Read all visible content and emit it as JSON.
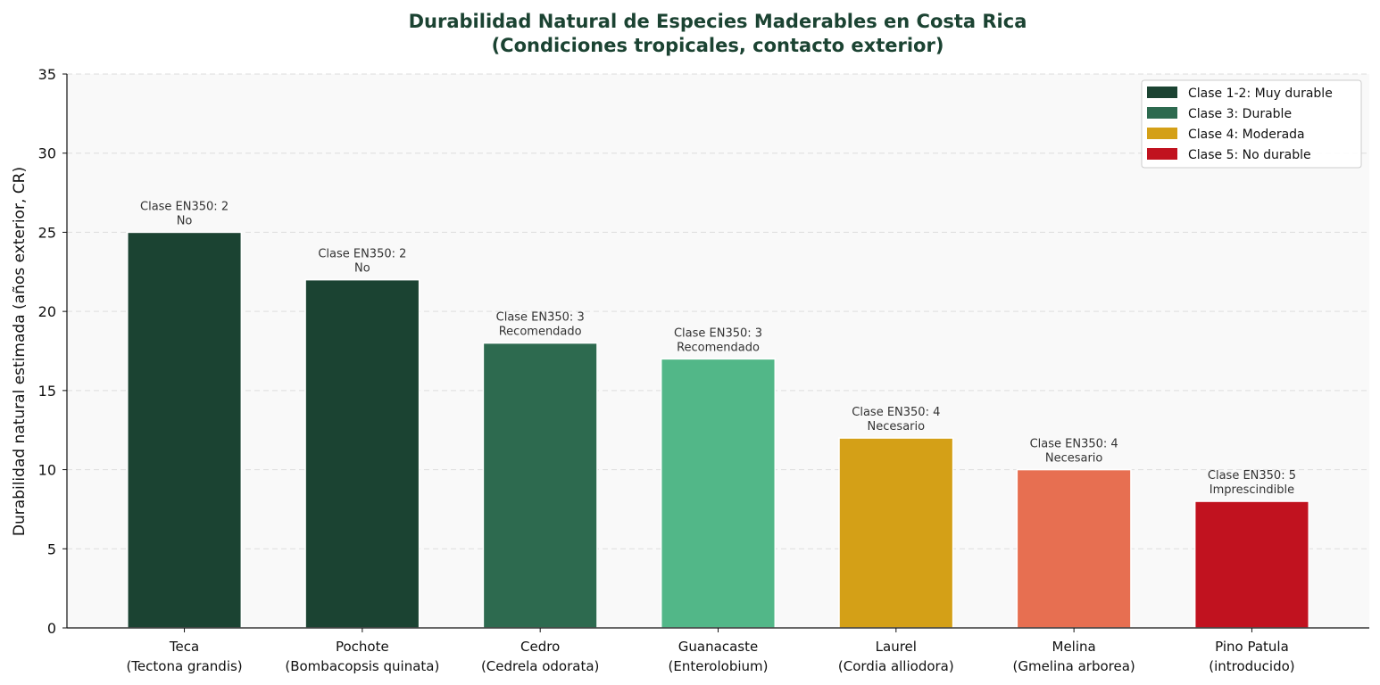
{
  "chart_data": {
    "type": "bar",
    "title_line1": "Durabilidad Natural de Especies Maderables en Costa Rica",
    "title_line2": "(Condiciones tropicales, contacto exterior)",
    "ylabel": "Durabilidad natural estimada (años exterior, CR)",
    "xlabel": "",
    "ylim": [
      0,
      35
    ],
    "yticks": [
      0,
      5,
      10,
      15,
      20,
      25,
      30,
      35
    ],
    "grid": "horizontal-dashed",
    "legend_position": "top-right",
    "categories": [
      {
        "line1": "Teca",
        "line2": "(Tectona grandis)"
      },
      {
        "line1": "Pochote",
        "line2": "(Bombacopsis quinata)"
      },
      {
        "line1": "Cedro",
        "line2": "(Cedrela odorata)"
      },
      {
        "line1": "Guanacaste",
        "line2": "(Enterolobium)"
      },
      {
        "line1": "Laurel",
        "line2": "(Cordia alliodora)"
      },
      {
        "line1": "Melina",
        "line2": "(Gmelina arborea)"
      },
      {
        "line1": "Pino Patula",
        "line2": "(introducido)"
      }
    ],
    "values": [
      25,
      22,
      18,
      17,
      12,
      10,
      8
    ],
    "bar_colors": [
      "#1b4332",
      "#1b4332",
      "#2d6a4f",
      "#52b788",
      "#d4a017",
      "#e76f51",
      "#c1121f"
    ],
    "annotations": [
      {
        "line1": "Clase EN350: 2",
        "line2": "No"
      },
      {
        "line1": "Clase EN350: 2",
        "line2": "No"
      },
      {
        "line1": "Clase EN350: 3",
        "line2": "Recomendado"
      },
      {
        "line1": "Clase EN350: 3",
        "line2": "Recomendado"
      },
      {
        "line1": "Clase EN350: 4",
        "line2": "Necesario"
      },
      {
        "line1": "Clase EN350: 4",
        "line2": "Necesario"
      },
      {
        "line1": "Clase EN350: 5",
        "line2": "Imprescindible"
      }
    ],
    "legend": [
      {
        "label": "Clase 1-2: Muy durable",
        "color": "#1b4332"
      },
      {
        "label": "Clase 3: Durable",
        "color": "#2d6a4f"
      },
      {
        "label": "Clase 4: Moderada",
        "color": "#d4a017"
      },
      {
        "label": "Clase 5: No durable",
        "color": "#c1121f"
      }
    ],
    "colors": {
      "title": "#1b4332",
      "plot_background": "#f9f9f9",
      "grid": "#dddddd"
    }
  }
}
